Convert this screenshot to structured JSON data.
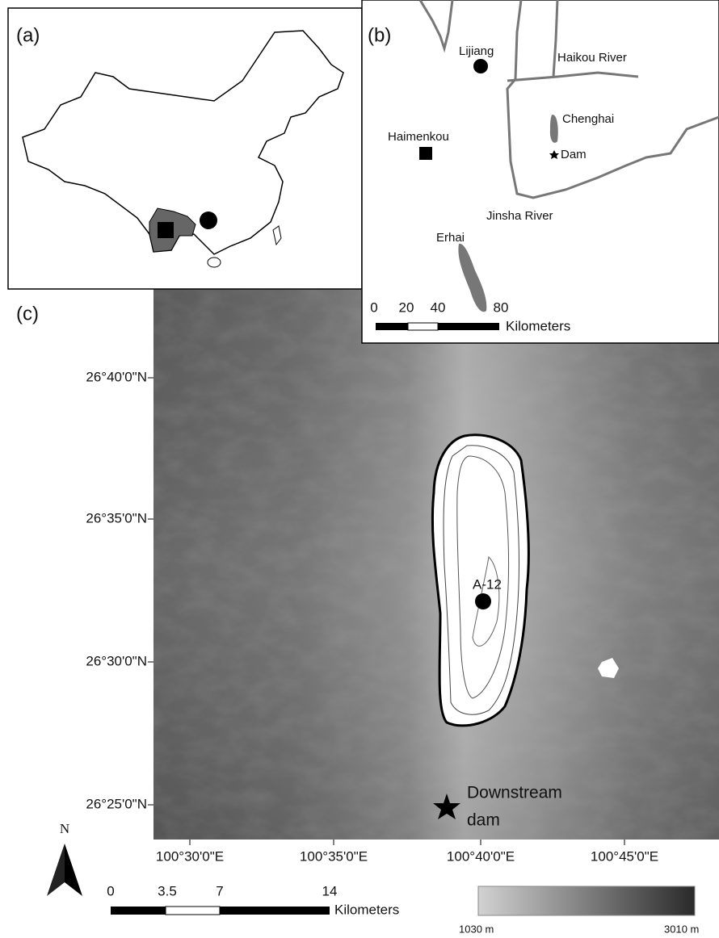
{
  "panel_a": {
    "label": "(a)"
  },
  "panel_b": {
    "label": "(b)",
    "places": {
      "lijiang": "Lijiang",
      "haikou_river": "Haikou River",
      "chenghai": "Chenghai",
      "dam": "Dam",
      "haimenkou": "Haimenkou",
      "jinsha_river": "Jinsha River",
      "erhai": "Erhai"
    },
    "scale": {
      "ticks": [
        "0",
        "20",
        "40",
        "80"
      ],
      "unit": "Kilometers"
    }
  },
  "panel_c": {
    "label": "(c)",
    "latitudes": [
      "26°40'0\"N",
      "26°35'0\"N",
      "26°30'0\"N",
      "26°25'0\"N"
    ],
    "longitudes": [
      "100°30'0\"E",
      "100°35'0\"E",
      "100°40'0\"E",
      "100°45'0\"E"
    ],
    "site": "A-12",
    "dam": [
      "Downstream",
      "dam"
    ],
    "north": "N",
    "scale": {
      "ticks": [
        "0",
        "3.5",
        "7",
        "14"
      ],
      "unit": "Kilometers"
    },
    "elevation": {
      "min": "1030 m",
      "max": "3010 m"
    }
  }
}
